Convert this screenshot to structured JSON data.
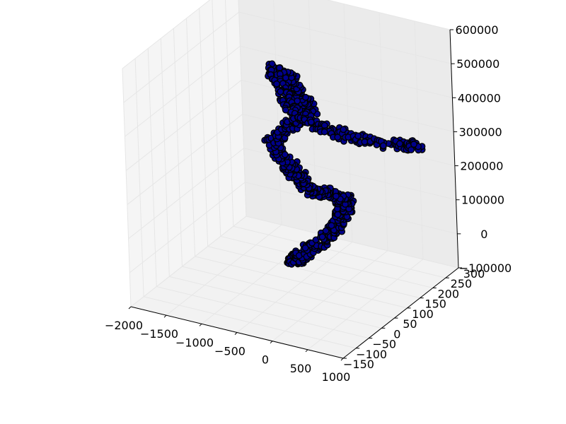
{
  "chart_data": {
    "type": "scatter",
    "projection": "3d",
    "title": "",
    "xlabel": "",
    "ylabel": "",
    "zlabel": "",
    "grid": true,
    "marker_edge_color": "#000000",
    "marker_face_color": "#00008b",
    "pane_color": "#f2f2f2",
    "grid_color": "#e6e6e6",
    "x_axis": {
      "range": [
        -2000,
        1000
      ],
      "ticks": [
        -2000,
        -1500,
        -1000,
        -500,
        0,
        500,
        1000
      ],
      "tick_labels": [
        "−2000",
        "−1500",
        "−1000",
        "−500",
        "0",
        "500",
        "1000"
      ]
    },
    "y_axis": {
      "range": [
        -150,
        300
      ],
      "ticks": [
        -150,
        -100,
        -50,
        0,
        50,
        100,
        150,
        200,
        250,
        300
      ],
      "tick_labels": [
        "−150",
        "−100",
        "−50",
        "0",
        "50",
        "100",
        "150",
        "200",
        "250",
        "300"
      ]
    },
    "z_axis": {
      "range": [
        -100000,
        600000
      ],
      "ticks": [
        -100000,
        0,
        100000,
        200000,
        300000,
        400000,
        500000,
        600000
      ],
      "tick_labels": [
        "−100000",
        "0",
        "100000",
        "200000",
        "300000",
        "400000",
        "500000",
        "600000"
      ]
    },
    "series": [
      {
        "marker": "o",
        "description_points": [
          {
            "x": -300,
            "y": 30,
            "z": 20000
          },
          {
            "x": -200,
            "y": 0,
            "z": 40000
          },
          {
            "x": -100,
            "y": -20,
            "z": 60000
          },
          {
            "x": 0,
            "y": -30,
            "z": 80000
          },
          {
            "x": 100,
            "y": -10,
            "z": 100000
          },
          {
            "x": 200,
            "y": 20,
            "z": 120000
          },
          {
            "x": 300,
            "y": 40,
            "z": 150000
          },
          {
            "x": 250,
            "y": 80,
            "z": 170000
          },
          {
            "x": 150,
            "y": 100,
            "z": 180000
          },
          {
            "x": 0,
            "y": 90,
            "z": 190000
          },
          {
            "x": -200,
            "y": 70,
            "z": 200000
          },
          {
            "x": -400,
            "y": 90,
            "z": 210000
          },
          {
            "x": -600,
            "y": 110,
            "z": 220000
          },
          {
            "x": -800,
            "y": 120,
            "z": 240000
          },
          {
            "x": -1000,
            "y": 140,
            "z": 260000
          },
          {
            "x": -900,
            "y": 160,
            "z": 290000
          },
          {
            "x": -800,
            "y": 190,
            "z": 310000
          },
          {
            "x": -700,
            "y": 210,
            "z": 330000
          },
          {
            "x": -900,
            "y": 220,
            "z": 360000
          },
          {
            "x": -1000,
            "y": 230,
            "z": 380000
          },
          {
            "x": -1100,
            "y": 220,
            "z": 410000
          },
          {
            "x": -1200,
            "y": 210,
            "z": 430000
          },
          {
            "x": -800,
            "y": 150,
            "z": 380000
          },
          {
            "x": -400,
            "y": 120,
            "z": 370000
          },
          {
            "x": 0,
            "y": 110,
            "z": 360000
          },
          {
            "x": 400,
            "y": 120,
            "z": 350000
          },
          {
            "x": 800,
            "y": 150,
            "z": 340000
          },
          {
            "x": 1000,
            "y": 180,
            "z": 330000
          }
        ]
      }
    ]
  }
}
